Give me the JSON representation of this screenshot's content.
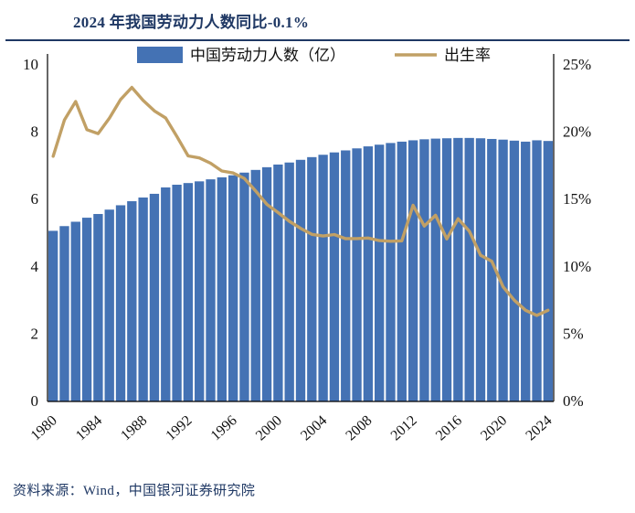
{
  "title": "2024 年我国劳动力人数同比-0.1%",
  "source": "资料来源：Wind，中国银河证券研究院",
  "colors": {
    "accent": "#1F3864",
    "bar": "#4472B4",
    "line": "#C1A065",
    "axis": "#000000"
  },
  "chart_data": {
    "type": "bar",
    "title": "2024 年我国劳动力人数同比-0.1%",
    "categories": [
      1980,
      1981,
      1982,
      1983,
      1984,
      1985,
      1986,
      1987,
      1988,
      1989,
      1990,
      1991,
      1992,
      1993,
      1994,
      1995,
      1996,
      1997,
      1998,
      1999,
      2000,
      2001,
      2002,
      2003,
      2004,
      2005,
      2006,
      2007,
      2008,
      2009,
      2010,
      2011,
      2012,
      2013,
      2014,
      2015,
      2016,
      2017,
      2018,
      2019,
      2020,
      2021,
      2022,
      2023,
      2024
    ],
    "series": [
      {
        "name": "中国劳动力人数（亿）",
        "type": "bar",
        "axis": "left",
        "color": "#4472B4",
        "values": [
          5.07,
          5.21,
          5.34,
          5.46,
          5.57,
          5.7,
          5.83,
          5.95,
          6.06,
          6.17,
          6.36,
          6.44,
          6.49,
          6.54,
          6.6,
          6.66,
          6.72,
          6.8,
          6.88,
          6.96,
          7.04,
          7.1,
          7.18,
          7.26,
          7.33,
          7.4,
          7.46,
          7.52,
          7.58,
          7.63,
          7.68,
          7.72,
          7.76,
          7.79,
          7.81,
          7.82,
          7.83,
          7.83,
          7.82,
          7.8,
          7.78,
          7.75,
          7.72,
          7.76,
          7.74
        ]
      },
      {
        "name": "出生率",
        "type": "line",
        "axis": "right",
        "color": "#C1A065",
        "values": [
          18.21,
          20.91,
          22.28,
          20.19,
          19.9,
          21.04,
          22.43,
          23.33,
          22.37,
          21.58,
          21.06,
          19.68,
          18.24,
          18.09,
          17.7,
          17.12,
          16.98,
          16.57,
          15.64,
          14.64,
          14.03,
          13.38,
          12.86,
          12.41,
          12.29,
          12.4,
          12.09,
          12.1,
          12.14,
          11.95,
          11.9,
          11.93,
          14.57,
          13.03,
          13.83,
          12.07,
          13.57,
          12.64,
          10.86,
          10.41,
          8.52,
          7.52,
          6.77,
          6.39,
          6.77
        ]
      }
    ],
    "left_axis": {
      "min": 0,
      "max": 10,
      "ticks": [
        0,
        2,
        4,
        6,
        8,
        10
      ]
    },
    "right_axis": {
      "min": 0,
      "max": 25,
      "ticks": [
        0,
        5,
        10,
        15,
        20,
        25
      ],
      "suffix": "%"
    },
    "x_ticks": [
      1980,
      1984,
      1988,
      1992,
      1996,
      2000,
      2004,
      2008,
      2012,
      2016,
      2020,
      2024
    ],
    "legend_position": "top",
    "grid": false
  }
}
